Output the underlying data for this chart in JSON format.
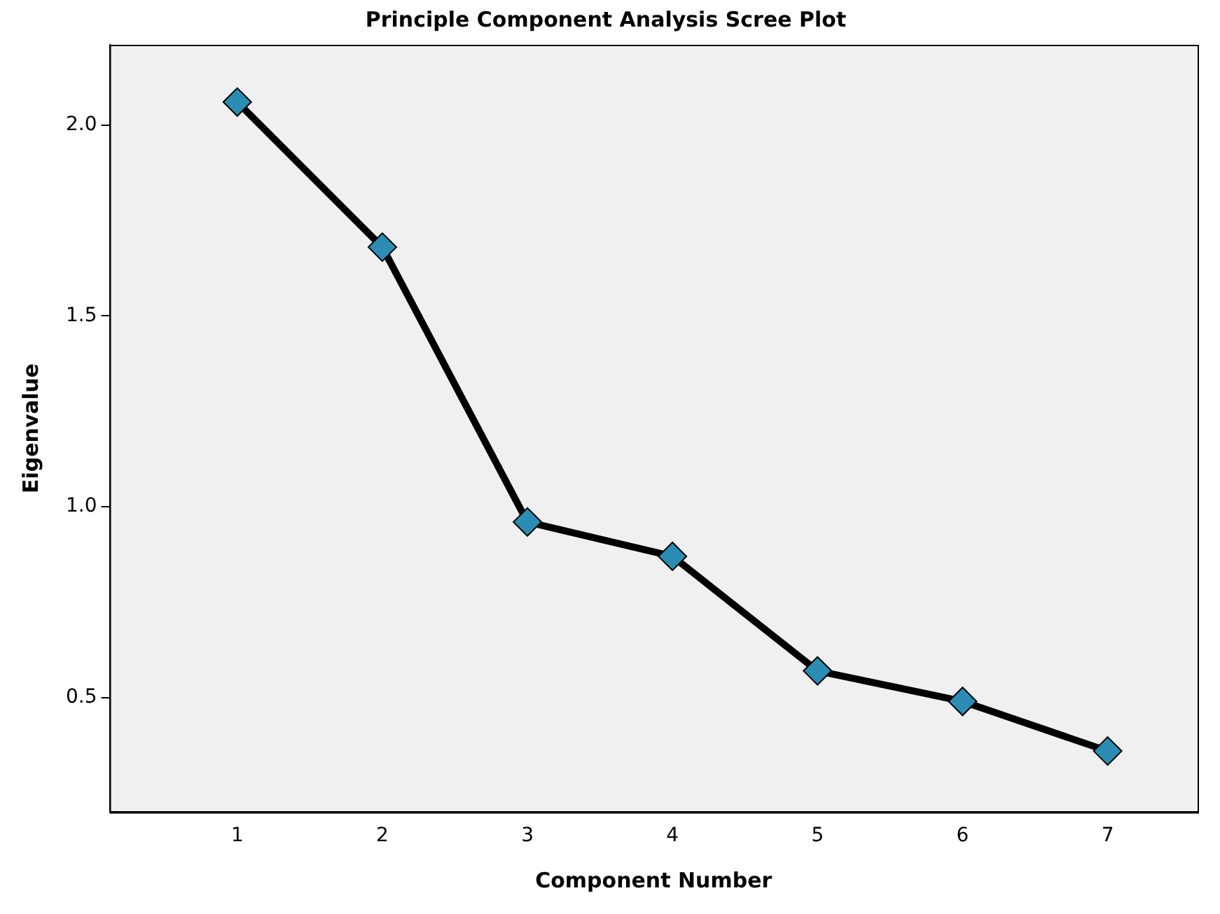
{
  "chart_data": {
    "type": "line",
    "title": "Principle Component Analysis Scree Plot",
    "xlabel": "Component Number",
    "ylabel": "Eigenvalue",
    "x": [
      1,
      2,
      3,
      4,
      5,
      6,
      7
    ],
    "series": [
      {
        "color": "#000000",
        "colors": [
          "#2b8db3",
          "#2b8db3",
          "#2b8db3",
          "#2b8db3",
          "#2b8db3",
          "#2b8db3",
          "#2b8db3"
        ],
        "values": [
          2.06,
          1.68,
          0.96,
          0.87,
          0.57,
          0.49,
          0.36
        ]
      }
    ],
    "xlim": [
      0.12,
      7.62
    ],
    "xticks": [
      1,
      2,
      3,
      4,
      5,
      6,
      7
    ],
    "ylim": [
      0.2,
      2.21
    ],
    "yticks": [
      {
        "value": 0.5,
        "label": "0.5"
      },
      {
        "value": 1,
        "label": "1.0"
      },
      {
        "value": 1.5,
        "label": "1.5"
      },
      {
        "value": 2,
        "label": "2.0"
      }
    ],
    "grid": false,
    "legend": false,
    "marker": "diamond",
    "line_style": "solid"
  }
}
